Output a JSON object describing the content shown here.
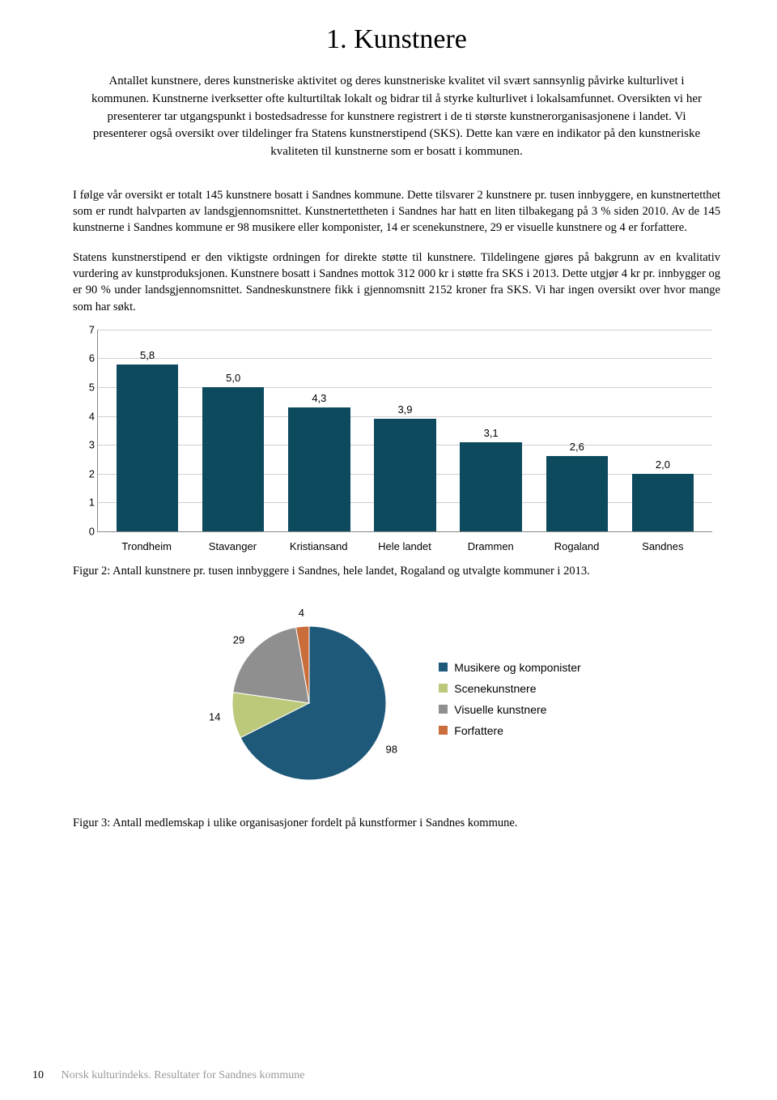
{
  "heading": "1. Kunstnere",
  "intro": "Antallet kunstnere, deres kunstneriske aktivitet og deres kunstneriske kvalitet vil svært sannsynlig påvirke kulturlivet i kommunen. Kunstnerne iverksetter ofte kulturtiltak lokalt og bidrar til å styrke kulturlivet i lokalsamfunnet. Oversikten vi her presenterer tar utgangspunkt i bostedsadresse for kunstnere registrert i de ti største kunstnerorganisasjonene i landet. Vi presenterer også oversikt over tildelinger fra Statens kunstnerstipend (SKS). Dette kan være en indikator på den kunstneriske kvaliteten til kunstnerne som er bosatt i kommunen.",
  "para1": "I følge vår oversikt er totalt 145 kunstnere bosatt i Sandnes kommune. Dette tilsvarer 2 kunstnere pr. tusen innbyggere, en kunstnertetthet som er rundt halvparten av landsgjennomsnittet. Kunstnertettheten i Sandnes har hatt en liten tilbakegang på 3 % siden 2010. Av de 145 kunstnerne i Sandnes kommune er 98 musikere eller komponister, 14 er scenekunstnere, 29 er visuelle kunstnere og 4 er forfattere.",
  "para2": "Statens kunstnerstipend er den viktigste ordningen for direkte støtte til kunstnere. Tildelingene gjøres på bakgrunn av en kvalitativ vurdering av kunstproduksjonen. Kunstnere bosatt i Sandnes mottok 312 000 kr i støtte fra SKS i 2013. Dette utgjør 4 kr pr. innbygger og er 90 % under landsgjennomsnittet. Sandneskunstnere fikk i gjennomsnitt 2152 kroner fra SKS. Vi har ingen oversikt over hvor mange som har søkt.",
  "bar_chart": {
    "type": "bar",
    "ymax": 7,
    "ytick_step": 1,
    "bar_color": "#0d4a5e",
    "grid_color": "#cfcfcf",
    "axis_color": "#888888",
    "label_fontsize": 13,
    "categories": [
      "Trondheim",
      "Stavanger",
      "Kristiansand",
      "Hele landet",
      "Drammen",
      "Rogaland",
      "Sandnes"
    ],
    "values": [
      5.8,
      5.0,
      4.3,
      3.9,
      3.1,
      2.6,
      2.0
    ],
    "value_labels": [
      "5,8",
      "5,0",
      "4,3",
      "3,9",
      "3,1",
      "2,6",
      "2,0"
    ]
  },
  "caption_bar": "Figur 2: Antall kunstnere pr. tusen innbyggere i Sandnes, hele landet, Rogaland og utvalgte kommuner i 2013.",
  "pie_chart": {
    "type": "pie",
    "slices": [
      {
        "label": "Musikere og komponister",
        "value": 98,
        "color": "#1f597a"
      },
      {
        "label": "Scenekunstnere",
        "value": 14,
        "color": "#bcc97a"
      },
      {
        "label": "Visuelle kunstnere",
        "value": 29,
        "color": "#8f8f8f"
      },
      {
        "label": "Forfattere",
        "value": 4,
        "color": "#c96d3a"
      }
    ],
    "value_label_fontsize": 13,
    "legend_fontsize": 14,
    "edge_color": "#ffffff"
  },
  "caption_pie": "Figur 3: Antall medlemskap i ulike organisasjoner fordelt på kunstformer i Sandnes kommune.",
  "footer": {
    "page": "10",
    "text": "Norsk kulturindeks. Resultater for Sandnes kommune"
  }
}
